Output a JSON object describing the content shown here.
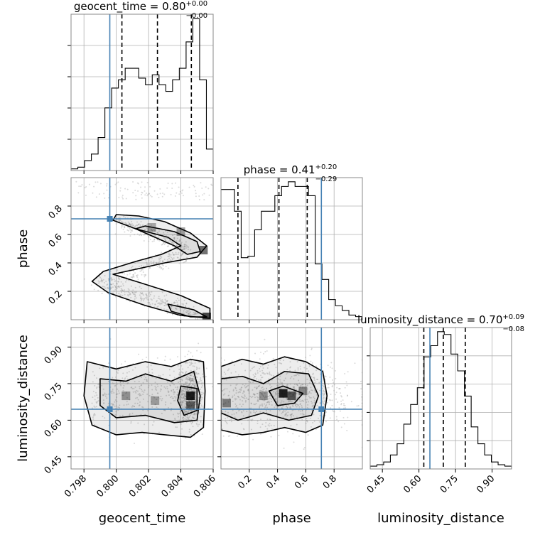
{
  "chart_data": {
    "type": "corner",
    "parameters": [
      "geocent_time",
      "phase",
      "luminosity_distance"
    ],
    "truths": {
      "geocent_time": 0.7996,
      "phase": 0.71,
      "luminosity_distance": 0.645
    },
    "truth_color": "#4682b4",
    "titles": [
      {
        "param": "geocent_time",
        "text": "geocent_time = 0.80",
        "sup": "+0.00",
        "sub": "−0.00"
      },
      {
        "param": "phase",
        "text": "phase = 0.41",
        "sup": "+0.20",
        "sub": "−0.29"
      },
      {
        "param": "luminosity_distance",
        "text": "luminosity_distance = 0.70",
        "sup": "+0.09",
        "sub": "−0.08"
      }
    ],
    "axis_labels": {
      "x": [
        "geocent_time",
        "phase",
        "luminosity_distance"
      ],
      "y": [
        "phase",
        "luminosity_distance"
      ]
    },
    "ranges": {
      "geocent_time": [
        0.7972,
        0.806
      ],
      "phase": [
        0.0,
        1.0
      ],
      "luminosity_distance": [
        0.4,
        0.98
      ]
    },
    "ticks": {
      "geocent_time": [
        0.798,
        0.8,
        0.802,
        0.804,
        0.806
      ],
      "geocent_time_labels": [
        "0.798",
        "0.800",
        "0.802",
        "0.804",
        "0.806"
      ],
      "phase": [
        0.2,
        0.4,
        0.6,
        0.8
      ],
      "phase_labels": [
        "0.2",
        "0.4",
        "0.6",
        "0.8"
      ],
      "luminosity_distance": [
        0.45,
        0.6,
        0.75,
        0.9
      ],
      "luminosity_distance_labels": [
        "0.45",
        "0.60",
        "0.75",
        "0.90"
      ]
    },
    "quantiles": {
      "geocent_time": [
        0.80035,
        0.80255,
        0.80465
      ],
      "phase": [
        0.12,
        0.41,
        0.61
      ],
      "luminosity_distance": [
        0.62,
        0.7,
        0.79
      ]
    },
    "histograms": {
      "geocent_time": [
        1,
        2,
        6,
        10,
        20,
        38,
        50,
        55,
        62,
        62,
        56,
        52,
        58,
        52,
        48,
        55,
        62,
        78,
        92,
        55,
        13
      ],
      "phase": [
        84,
        84,
        70,
        40,
        41,
        58,
        70,
        70,
        80,
        86,
        89,
        86,
        86,
        80,
        36,
        26,
        13,
        9,
        6,
        3,
        2
      ],
      "luminosity_distance": [
        2,
        3,
        5,
        10,
        18,
        32,
        46,
        58,
        80,
        88,
        98,
        96,
        82,
        70,
        52,
        30,
        18,
        10,
        5,
        3,
        2
      ]
    },
    "grid": true
  }
}
